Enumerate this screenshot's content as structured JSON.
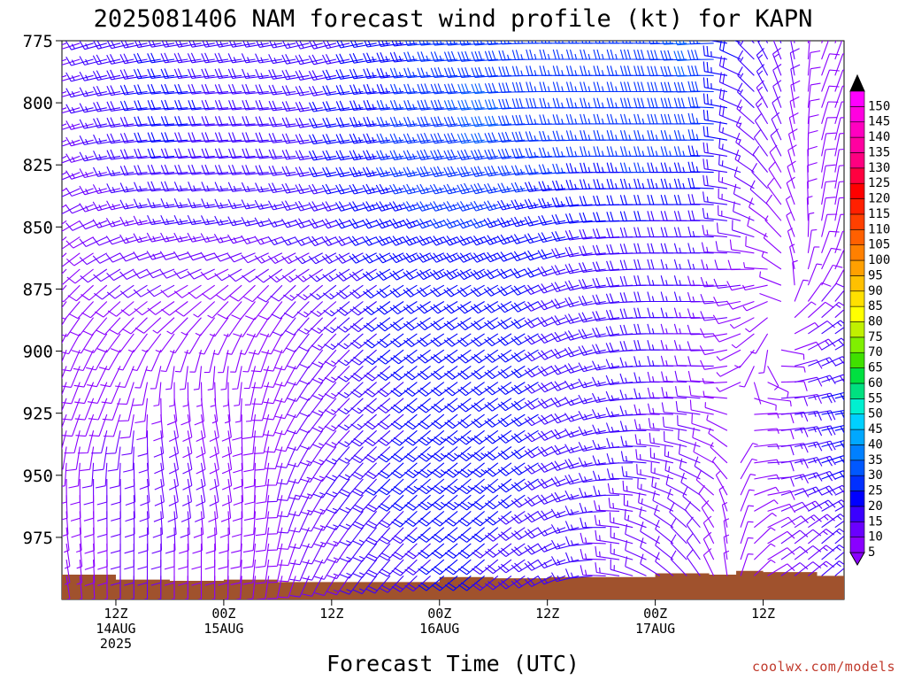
{
  "title": "2025081406 NAM forecast wind profile (kt) for KAPN",
  "credit": "coolwx.com/models",
  "chart_data": {
    "type": "wind-profile",
    "title": "2025081406 NAM forecast wind profile (kt) for KAPN",
    "xlabel": "Forecast Time (UTC)",
    "ylabel": "",
    "units": "kt",
    "y_axis": {
      "ticks": [
        775,
        800,
        825,
        850,
        875,
        900,
        925,
        950,
        975
      ],
      "range": [
        775,
        1000
      ]
    },
    "x_axis": {
      "range": [
        6,
        93
      ],
      "ticks": [
        {
          "hour": 12,
          "line1": "12Z",
          "line2": "14AUG",
          "line3": "2025"
        },
        {
          "hour": 24,
          "line1": "00Z",
          "line2": "15AUG",
          "line3": ""
        },
        {
          "hour": 36,
          "line1": "12Z",
          "line2": "",
          "line3": ""
        },
        {
          "hour": 48,
          "line1": "00Z",
          "line2": "16AUG",
          "line3": ""
        },
        {
          "hour": 60,
          "line1": "12Z",
          "line2": "",
          "line3": ""
        },
        {
          "hour": 72,
          "line1": "00Z",
          "line2": "17AUG",
          "line3": ""
        },
        {
          "hour": 84,
          "line1": "12Z",
          "line2": "",
          "line3": ""
        }
      ]
    },
    "surface_pressure": [
      {
        "hour": 6,
        "p": 990
      },
      {
        "hour": 12,
        "p": 992
      },
      {
        "hour": 18,
        "p": 992.5
      },
      {
        "hour": 24,
        "p": 992
      },
      {
        "hour": 30,
        "p": 993
      },
      {
        "hour": 36,
        "p": 993
      },
      {
        "hour": 42,
        "p": 993
      },
      {
        "hour": 48,
        "p": 991
      },
      {
        "hour": 54,
        "p": 991.5
      },
      {
        "hour": 60,
        "p": 991
      },
      {
        "hour": 66,
        "p": 991
      },
      {
        "hour": 72,
        "p": 989.5
      },
      {
        "hour": 78,
        "p": 990
      },
      {
        "hour": 81,
        "p": 988.5
      },
      {
        "hour": 84,
        "p": 989
      },
      {
        "hour": 90,
        "p": 990.5
      },
      {
        "hour": 93,
        "p": 991
      }
    ],
    "wind_field": {
      "levels_mb": [
        775,
        800,
        825,
        850,
        875,
        900,
        925,
        950,
        975
      ],
      "hours": [
        6,
        12,
        18,
        24,
        30,
        36,
        42,
        48,
        54,
        60,
        66,
        72,
        78,
        84,
        90
      ],
      "speed_kt": [
        [
          12,
          18,
          20,
          18,
          16,
          18,
          22,
          26,
          28,
          25,
          25,
          28,
          32,
          20,
          8
        ],
        [
          12,
          18,
          22,
          20,
          18,
          20,
          24,
          28,
          32,
          28,
          26,
          28,
          30,
          15,
          8
        ],
        [
          10,
          16,
          20,
          18,
          18,
          20,
          24,
          28,
          30,
          27,
          25,
          26,
          25,
          12,
          8
        ],
        [
          8,
          12,
          15,
          15,
          15,
          18,
          22,
          25,
          25,
          22,
          20,
          20,
          18,
          10,
          8
        ],
        [
          8,
          10,
          10,
          8,
          10,
          15,
          20,
          22,
          22,
          20,
          18,
          18,
          15,
          8,
          10
        ],
        [
          8,
          8,
          5,
          5,
          8,
          12,
          20,
          22,
          22,
          20,
          18,
          18,
          12,
          6,
          18
        ],
        [
          8,
          10,
          10,
          8,
          8,
          12,
          18,
          22,
          22,
          20,
          16,
          15,
          10,
          8,
          22
        ],
        [
          8,
          12,
          12,
          10,
          10,
          15,
          20,
          24,
          24,
          20,
          18,
          15,
          12,
          10,
          22
        ],
        [
          5,
          10,
          10,
          8,
          8,
          12,
          18,
          20,
          20,
          18,
          15,
          12,
          10,
          8,
          15
        ]
      ],
      "direction_deg": [
        [
          250,
          255,
          260,
          260,
          260,
          255,
          260,
          265,
          265,
          270,
          270,
          270,
          265,
          330,
          20
        ],
        [
          250,
          260,
          265,
          265,
          265,
          260,
          265,
          265,
          265,
          270,
          270,
          270,
          270,
          330,
          20
        ],
        [
          240,
          260,
          265,
          265,
          265,
          260,
          260,
          260,
          260,
          265,
          270,
          270,
          270,
          320,
          10
        ],
        [
          230,
          250,
          260,
          260,
          255,
          250,
          250,
          250,
          250,
          255,
          265,
          270,
          270,
          300,
          10
        ],
        [
          220,
          230,
          240,
          230,
          220,
          230,
          235,
          240,
          240,
          245,
          260,
          270,
          270,
          250,
          30
        ],
        [
          200,
          210,
          200,
          190,
          200,
          220,
          230,
          235,
          235,
          240,
          255,
          270,
          270,
          200,
          60
        ],
        [
          200,
          200,
          170,
          170,
          200,
          220,
          230,
          230,
          235,
          240,
          255,
          270,
          280,
          90,
          80
        ],
        [
          180,
          180,
          170,
          170,
          190,
          215,
          225,
          230,
          230,
          240,
          260,
          280,
          300,
          90,
          70
        ],
        [
          170,
          180,
          180,
          180,
          190,
          210,
          220,
          230,
          230,
          240,
          270,
          300,
          330,
          60,
          50
        ]
      ]
    },
    "colorbar": {
      "labels": [
        5,
        10,
        15,
        20,
        25,
        30,
        35,
        40,
        45,
        50,
        55,
        60,
        65,
        70,
        75,
        80,
        85,
        90,
        95,
        100,
        105,
        110,
        115,
        120,
        125,
        130,
        135,
        140,
        145,
        150
      ],
      "colors": [
        "#8a00ff",
        "#6a00ff",
        "#3a00ff",
        "#0000ff",
        "#0030ff",
        "#0058ff",
        "#0080ff",
        "#00a8ff",
        "#00d0ff",
        "#00f0d0",
        "#00e080",
        "#00e040",
        "#40e000",
        "#80f000",
        "#c0f000",
        "#ffff00",
        "#ffe000",
        "#ffc000",
        "#ffa000",
        "#ff8000",
        "#ff6000",
        "#ff4000",
        "#ff2000",
        "#ff0000",
        "#ff0040",
        "#ff0080",
        "#ff00a0",
        "#ff00c0",
        "#ff00e0",
        "#ff00ff"
      ],
      "low_color": "#8a00ff",
      "high_color": "#000000"
    },
    "terrain_color": "#a0522d"
  }
}
